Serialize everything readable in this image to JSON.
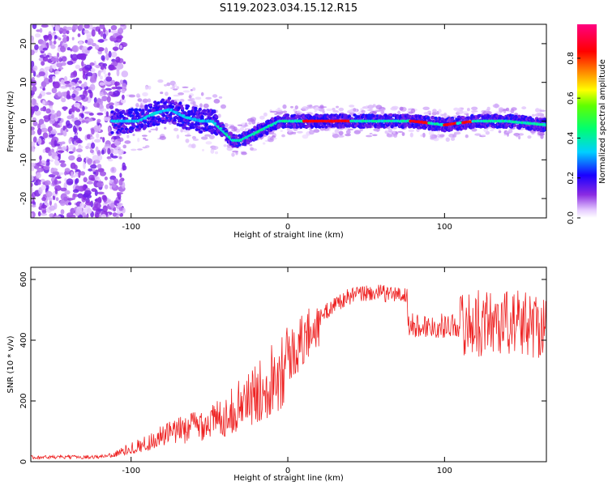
{
  "title": "S119.2023.034.15.12.R15",
  "chart_data": [
    {
      "type": "heatmap",
      "xlabel": "Height of straight line (km)",
      "ylabel": "Frequency (Hz)",
      "xlim": [
        -164,
        165
      ],
      "ylim": [
        -25,
        25
      ],
      "xticks": [
        -100,
        0,
        100
      ],
      "yticks": [
        -20,
        -10,
        0,
        10,
        20
      ],
      "colorbar": {
        "label": "Normalized spectral amplitude",
        "ticks": [
          0.0,
          0.2,
          0.4,
          0.6,
          0.8
        ],
        "range": [
          0,
          0.97
        ]
      },
      "ridge": {
        "description_points_x": [
          -110,
          -95,
          -85,
          -75,
          -65,
          -55,
          -48,
          -40,
          -35,
          -30,
          -25,
          -20,
          -15,
          -10,
          -5,
          0,
          10,
          20,
          40,
          60,
          80,
          100,
          120,
          140,
          165
        ],
        "description_points_freq": [
          0,
          0,
          2,
          3,
          1,
          0,
          0,
          -3,
          -5,
          -5,
          -4,
          -3,
          -2,
          -1,
          0,
          0,
          0,
          0,
          0,
          0,
          0,
          -1,
          0,
          0,
          -1
        ],
        "peak_amplitude_segments": [
          [
            10,
            40
          ],
          [
            78,
            90
          ],
          [
            100,
            108
          ],
          [
            112,
            118
          ]
        ]
      }
    },
    {
      "type": "line",
      "xlabel": "Height of straight line (km)",
      "ylabel": "SNR (10 * v/v)",
      "xlim": [
        -164,
        165
      ],
      "ylim": [
        0,
        640
      ],
      "xticks": [
        -100,
        0,
        100
      ],
      "yticks": [
        0,
        200,
        400,
        600
      ],
      "color": "#ee2222",
      "series": [
        {
          "x": [
            -164,
            -140,
            -120,
            -110,
            -100,
            -90,
            -80,
            -70,
            -60,
            -50,
            -40,
            -30,
            -20,
            -10,
            0,
            10,
            20,
            30,
            40,
            50,
            60,
            70,
            76,
            77,
            90,
            100,
            110,
            120,
            130,
            140,
            150,
            165
          ],
          "values": [
            15,
            15,
            16,
            25,
            45,
            60,
            85,
            100,
            120,
            130,
            150,
            190,
            220,
            280,
            340,
            400,
            470,
            520,
            545,
            555,
            555,
            550,
            545,
            450,
            445,
            448,
            450,
            455,
            460,
            460,
            455,
            450
          ]
        }
      ]
    }
  ]
}
